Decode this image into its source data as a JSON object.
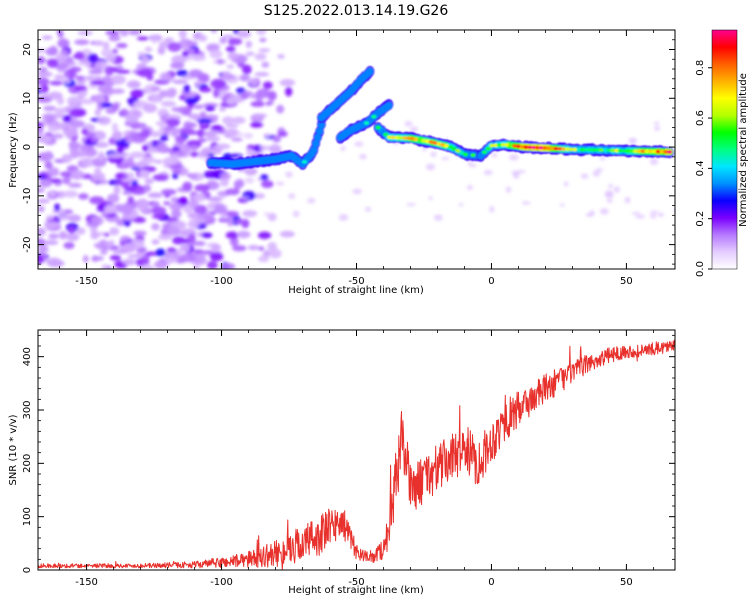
{
  "figure": {
    "title": "S125.2022.013.14.19.G26"
  },
  "chart_data": [
    {
      "type": "heatmap",
      "xlabel": "Height of straight line (km)",
      "ylabel": "Frequency (Hz)",
      "xlim": [
        -168,
        68
      ],
      "ylim": [
        -25,
        24
      ],
      "x_ticks": [
        -150,
        -100,
        -50,
        0,
        50
      ],
      "y_ticks": [
        -20,
        -10,
        0,
        10,
        20
      ],
      "colorbar": {
        "label": "Normalized spectral amplitude",
        "range": [
          0,
          0.95
        ],
        "ticks": [
          0.0,
          0.2,
          0.4,
          0.6,
          0.8
        ],
        "colormap": [
          "#ffffff",
          "#e4ccff",
          "#b67aff",
          "#7a00ff",
          "#0a00ff",
          "#0090ff",
          "#00e6ff",
          "#00ff80",
          "#00ff00",
          "#b4ff00",
          "#ffff00",
          "#ffb000",
          "#ff6000",
          "#ff0000",
          "#ff0090"
        ]
      },
      "features": {
        "noise_region_x": [
          -168,
          -100
        ],
        "ridges": [
          {
            "x": [
              -104,
              -96,
              -88,
              -80,
              -74,
              -70,
              -66,
              -63
            ],
            "y": [
              -3.2,
              -3.5,
              -3.0,
              -2.5,
              -1.8,
              -3.5,
              -1.0,
              4.5
            ],
            "amp": [
              0.25,
              0.3,
              0.28,
              0.32,
              0.25,
              0.3,
              0.3,
              0.35
            ]
          },
          {
            "x": [
              -63,
              -58,
              -52,
              -48,
              -45
            ],
            "y": [
              6.0,
              8.5,
              11.5,
              14.0,
              15.5
            ],
            "amp": [
              0.25,
              0.3,
              0.28,
              0.22,
              0.15
            ]
          },
          {
            "x": [
              -56,
              -52,
              -46,
              -42,
              -38
            ],
            "y": [
              2.0,
              3.5,
              5.0,
              7.0,
              8.5
            ],
            "amp": [
              0.2,
              0.3,
              0.35,
              0.3,
              0.2
            ]
          },
          {
            "x": [
              -42,
              -38,
              -30,
              -22,
              -15,
              -10,
              -4
            ],
            "y": [
              4.0,
              2.0,
              1.8,
              1.0,
              0.0,
              -1.5,
              -1.8
            ],
            "amp": [
              0.4,
              0.55,
              0.65,
              0.7,
              0.6,
              0.45,
              0.4
            ]
          },
          {
            "x": [
              -4,
              0,
              5,
              12,
              20,
              30,
              40,
              50,
              60,
              66
            ],
            "y": [
              -1.8,
              0.3,
              0.5,
              0.0,
              -0.2,
              -0.5,
              -0.6,
              -0.8,
              -0.9,
              -1.0
            ],
            "amp": [
              0.4,
              0.5,
              0.6,
              0.85,
              0.9,
              0.55,
              0.5,
              0.55,
              0.75,
              0.85
            ]
          }
        ]
      }
    },
    {
      "type": "line",
      "xlabel": "Height of straight line (km)",
      "ylabel": "SNR (10 * v/v)",
      "xlim": [
        -168,
        68
      ],
      "ylim": [
        0,
        450
      ],
      "x_ticks": [
        -150,
        -100,
        -50,
        0,
        50
      ],
      "y_ticks": [
        0,
        100,
        200,
        300,
        400
      ],
      "series": [
        {
          "color": "#e8312c",
          "x": [
            -168,
            -150,
            -130,
            -110,
            -100,
            -90,
            -80,
            -70,
            -62,
            -58,
            -55,
            -50,
            -45,
            -40,
            -38,
            -35,
            -33,
            -30,
            -25,
            -20,
            -15,
            -10,
            -5,
            0,
            5,
            10,
            15,
            20,
            25,
            30,
            35,
            40,
            45,
            50,
            55,
            60,
            66
          ],
          "y": [
            8,
            8,
            8,
            10,
            14,
            20,
            30,
            50,
            70,
            85,
            90,
            35,
            20,
            40,
            80,
            180,
            260,
            150,
            170,
            190,
            210,
            230,
            200,
            240,
            280,
            300,
            320,
            340,
            355,
            370,
            385,
            395,
            405,
            410,
            410,
            415,
            420
          ],
          "noise": [
            4,
            4,
            4,
            6,
            10,
            15,
            25,
            35,
            40,
            35,
            30,
            15,
            10,
            20,
            40,
            60,
            60,
            45,
            45,
            45,
            45,
            45,
            45,
            40,
            40,
            35,
            30,
            28,
            25,
            20,
            18,
            15,
            15,
            12,
            12,
            12,
            12
          ]
        }
      ]
    }
  ]
}
